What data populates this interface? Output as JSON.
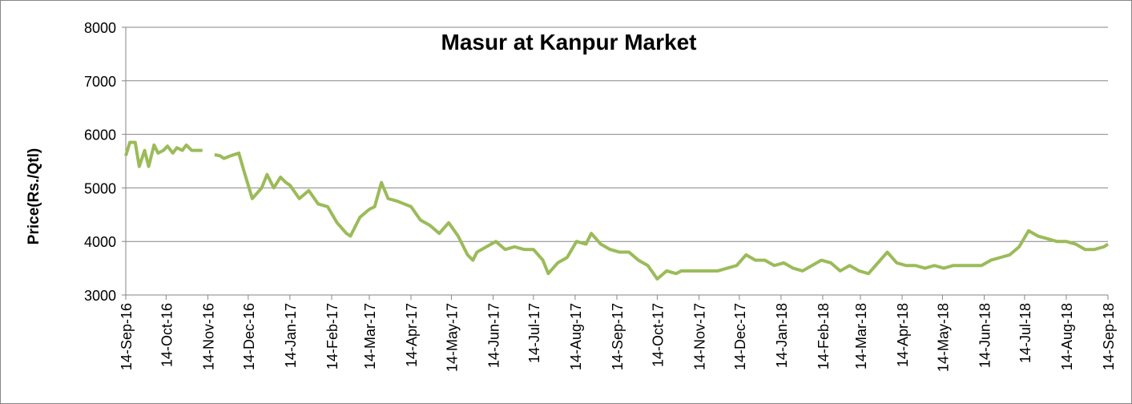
{
  "chart_data": {
    "type": "line",
    "title": "Masur at Kanpur Market",
    "y_label": "Price(Rs./Qtl)",
    "x": [
      "14-Sep-16",
      "17-Sep-16",
      "21-Sep-16",
      "24-Sep-16",
      "28-Sep-16",
      "1-Oct-16",
      "5-Oct-16",
      "8-Oct-16",
      "12-Oct-16",
      "15-Oct-16",
      "19-Oct-16",
      "22-Oct-16",
      "26-Oct-16",
      "29-Oct-16",
      "2-Nov-16",
      "5-Nov-16",
      "10-Nov-16",
      "14-Nov-16",
      "19-Nov-16",
      "23-Nov-16",
      "26-Nov-16",
      "1-Dec-16",
      "7-Dec-16",
      "11-Dec-16",
      "17-Dec-16",
      "24-Dec-16",
      "28-Dec-16",
      "2-Jan-17",
      "7-Jan-17",
      "11-Jan-17",
      "14-Jan-17",
      "21-Jan-17",
      "28-Jan-17",
      "4-Feb-17",
      "11-Feb-17",
      "18-Feb-17",
      "25-Feb-17",
      "28-Feb-17",
      "7-Mar-17",
      "14-Mar-17",
      "18-Mar-17",
      "23-Mar-17",
      "28-Mar-17",
      "4-Apr-17",
      "9-Apr-17",
      "14-Apr-17",
      "21-Apr-17",
      "28-Apr-17",
      "5-May-17",
      "12-May-17",
      "19-May-17",
      "26-May-17",
      "30-May-17",
      "2-Jun-17",
      "9-Jun-17",
      "16-Jun-17",
      "23-Jun-17",
      "30-Jun-17",
      "7-Jul-17",
      "14-Jul-17",
      "21-Jul-17",
      "25-Jul-17",
      "1-Aug-17",
      "8-Aug-17",
      "15-Aug-17",
      "22-Aug-17",
      "26-Aug-17",
      "2-Sep-17",
      "9-Sep-17",
      "16-Sep-17",
      "23-Sep-17",
      "30-Sep-17",
      "7-Oct-17",
      "14-Oct-17",
      "21-Oct-17",
      "28-Oct-17",
      "1-Nov-17",
      "14-Nov-17",
      "28-Nov-17",
      "5-Dec-17",
      "12-Dec-17",
      "19-Dec-17",
      "26-Dec-17",
      "2-Jan-18",
      "9-Jan-18",
      "16-Jan-18",
      "23-Jan-18",
      "30-Jan-18",
      "6-Feb-18",
      "13-Feb-18",
      "20-Feb-18",
      "27-Feb-18",
      "6-Mar-18",
      "13-Mar-18",
      "20-Mar-18",
      "27-Mar-18",
      "3-Apr-18",
      "10-Apr-18",
      "17-Apr-18",
      "24-Apr-18",
      "1-May-18",
      "8-May-18",
      "15-May-18",
      "22-May-18",
      "29-May-18",
      "5-Jun-18",
      "12-Jun-18",
      "19-Jun-18",
      "26-Jun-18",
      "3-Jul-18",
      "10-Jul-18",
      "17-Jul-18",
      "24-Jul-18",
      "31-Jul-18",
      "7-Aug-18",
      "14-Aug-18",
      "21-Aug-18",
      "28-Aug-18",
      "4-Sep-18",
      "11-Sep-18",
      "14-Sep-18"
    ],
    "series": [
      {
        "name": "Masur",
        "color": "#9bbb59",
        "values": [
          5600,
          5850,
          5850,
          5400,
          5700,
          5400,
          5800,
          5650,
          5700,
          5780,
          5650,
          5750,
          5700,
          5800,
          5700,
          5700,
          5700,
          null,
          5620,
          5600,
          5550,
          5600,
          5650,
          5300,
          4800,
          5000,
          5250,
          5000,
          5200,
          5100,
          5050,
          4800,
          4950,
          4700,
          4650,
          4350,
          4150,
          4100,
          4450,
          4600,
          4650,
          5100,
          4800,
          4750,
          4700,
          4650,
          4400,
          4300,
          4150,
          4350,
          4100,
          3750,
          3650,
          3800,
          3900,
          4000,
          3850,
          3900,
          3850,
          3850,
          3650,
          3400,
          3600,
          3700,
          4000,
          3950,
          4150,
          3950,
          3850,
          3800,
          3800,
          3650,
          3550,
          3300,
          3450,
          3400,
          3450,
          3450,
          3450,
          3500,
          3550,
          3750,
          3650,
          3650,
          3550,
          3600,
          3500,
          3450,
          3550,
          3650,
          3600,
          3450,
          3550,
          3450,
          3400,
          3600,
          3800,
          3600,
          3550,
          3550,
          3500,
          3550,
          3500,
          3550,
          3550,
          3550,
          3550,
          3650,
          3700,
          3750,
          3900,
          4200,
          4100,
          4050,
          4000,
          4000,
          3950,
          3850,
          3850,
          3900,
          3950
        ]
      }
    ],
    "xlim": [
      "14-Sep-16",
      "14-Sep-18"
    ],
    "xticks": [
      "14-Sep-16",
      "14-Oct-16",
      "14-Nov-16",
      "14-Dec-16",
      "14-Jan-17",
      "14-Feb-17",
      "14-Mar-17",
      "14-Apr-17",
      "14-May-17",
      "14-Jun-17",
      "14-Jul-17",
      "14-Aug-17",
      "14-Sep-17",
      "14-Oct-17",
      "14-Nov-17",
      "14-Dec-17",
      "14-Jan-18",
      "14-Feb-18",
      "14-Mar-18",
      "14-Apr-18",
      "14-May-18",
      "14-Jun-18",
      "14-Jul-18",
      "14-Aug-18",
      "14-Sep-18"
    ],
    "ylim": [
      3000,
      8000
    ],
    "yticks": [
      3000,
      4000,
      5000,
      6000,
      7000,
      8000
    ],
    "grid": true
  }
}
